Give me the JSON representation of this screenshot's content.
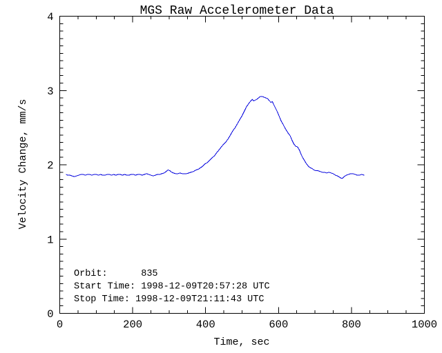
{
  "page": {
    "background_color": "#ffffff"
  },
  "chart_data": {
    "type": "line",
    "title": "MGS Raw Accelerometer Data",
    "xlabel": "Time, sec",
    "ylabel": "Velocity Change, mm/s",
    "xlim": [
      0,
      1000
    ],
    "ylim": [
      0,
      4
    ],
    "xticks": [
      "0",
      "200",
      "400",
      "600",
      "800",
      "1000"
    ],
    "yticks": [
      "0",
      "1",
      "2",
      "3",
      "4"
    ],
    "x_minor_interval": 50,
    "y_minor_interval": 0.1,
    "grid": false,
    "legend": false,
    "axis_color": "#000000",
    "annotations": [
      "Orbit:      835",
      "Start Time: 1998-12-09T20:57:28 UTC",
      "Stop Time: 1998-12-09T21:11:43 UTC"
    ],
    "series": [
      {
        "name": "velocity_change",
        "color": "#0000dd",
        "points": [
          [
            17,
            1.87
          ],
          [
            22,
            1.86
          ],
          [
            28,
            1.86
          ],
          [
            34,
            1.85
          ],
          [
            40,
            1.84
          ],
          [
            46,
            1.85
          ],
          [
            52,
            1.86
          ],
          [
            58,
            1.87
          ],
          [
            64,
            1.87
          ],
          [
            70,
            1.86
          ],
          [
            76,
            1.87
          ],
          [
            82,
            1.87
          ],
          [
            88,
            1.86
          ],
          [
            94,
            1.87
          ],
          [
            100,
            1.87
          ],
          [
            106,
            1.86
          ],
          [
            112,
            1.87
          ],
          [
            118,
            1.86
          ],
          [
            124,
            1.86
          ],
          [
            130,
            1.87
          ],
          [
            136,
            1.87
          ],
          [
            142,
            1.86
          ],
          [
            148,
            1.87
          ],
          [
            154,
            1.86
          ],
          [
            160,
            1.87
          ],
          [
            166,
            1.87
          ],
          [
            172,
            1.86
          ],
          [
            178,
            1.87
          ],
          [
            184,
            1.86
          ],
          [
            190,
            1.86
          ],
          [
            196,
            1.87
          ],
          [
            202,
            1.87
          ],
          [
            208,
            1.86
          ],
          [
            214,
            1.87
          ],
          [
            220,
            1.87
          ],
          [
            226,
            1.86
          ],
          [
            232,
            1.87
          ],
          [
            238,
            1.88
          ],
          [
            244,
            1.87
          ],
          [
            250,
            1.86
          ],
          [
            256,
            1.85
          ],
          [
            262,
            1.86
          ],
          [
            268,
            1.87
          ],
          [
            274,
            1.87
          ],
          [
            280,
            1.88
          ],
          [
            286,
            1.89
          ],
          [
            292,
            1.91
          ],
          [
            297,
            1.93
          ],
          [
            302,
            1.92
          ],
          [
            307,
            1.9
          ],
          [
            312,
            1.89
          ],
          [
            318,
            1.88
          ],
          [
            324,
            1.88
          ],
          [
            330,
            1.89
          ],
          [
            336,
            1.88
          ],
          [
            342,
            1.88
          ],
          [
            348,
            1.88
          ],
          [
            354,
            1.89
          ],
          [
            360,
            1.9
          ],
          [
            367,
            1.91
          ],
          [
            374,
            1.93
          ],
          [
            380,
            1.94
          ],
          [
            386,
            1.96
          ],
          [
            392,
            1.98
          ],
          [
            398,
            2.01
          ],
          [
            405,
            2.03
          ],
          [
            411,
            2.06
          ],
          [
            417,
            2.09
          ],
          [
            424,
            2.12
          ],
          [
            430,
            2.16
          ],
          [
            437,
            2.2
          ],
          [
            443,
            2.24
          ],
          [
            450,
            2.28
          ],
          [
            456,
            2.31
          ],
          [
            462,
            2.35
          ],
          [
            468,
            2.4
          ],
          [
            475,
            2.46
          ],
          [
            481,
            2.5
          ],
          [
            487,
            2.55
          ],
          [
            494,
            2.61
          ],
          [
            500,
            2.66
          ],
          [
            506,
            2.72
          ],
          [
            512,
            2.78
          ],
          [
            519,
            2.83
          ],
          [
            524,
            2.86
          ],
          [
            528,
            2.88
          ],
          [
            532,
            2.86
          ],
          [
            536,
            2.87
          ],
          [
            540,
            2.88
          ],
          [
            545,
            2.9
          ],
          [
            550,
            2.92
          ],
          [
            555,
            2.92
          ],
          [
            560,
            2.91
          ],
          [
            565,
            2.9
          ],
          [
            570,
            2.89
          ],
          [
            575,
            2.86
          ],
          [
            579,
            2.84
          ],
          [
            583,
            2.85
          ],
          [
            587,
            2.81
          ],
          [
            592,
            2.76
          ],
          [
            597,
            2.71
          ],
          [
            602,
            2.65
          ],
          [
            607,
            2.59
          ],
          [
            612,
            2.55
          ],
          [
            617,
            2.5
          ],
          [
            622,
            2.46
          ],
          [
            627,
            2.42
          ],
          [
            632,
            2.39
          ],
          [
            637,
            2.33
          ],
          [
            642,
            2.28
          ],
          [
            647,
            2.25
          ],
          [
            652,
            2.24
          ],
          [
            657,
            2.2
          ],
          [
            662,
            2.14
          ],
          [
            667,
            2.09
          ],
          [
            672,
            2.05
          ],
          [
            677,
            2.01
          ],
          [
            682,
            1.98
          ],
          [
            687,
            1.96
          ],
          [
            692,
            1.95
          ],
          [
            697,
            1.93
          ],
          [
            702,
            1.92
          ],
          [
            708,
            1.92
          ],
          [
            714,
            1.91
          ],
          [
            720,
            1.9
          ],
          [
            726,
            1.9
          ],
          [
            732,
            1.89
          ],
          [
            738,
            1.9
          ],
          [
            744,
            1.89
          ],
          [
            750,
            1.88
          ],
          [
            756,
            1.86
          ],
          [
            762,
            1.85
          ],
          [
            768,
            1.83
          ],
          [
            772,
            1.82
          ],
          [
            776,
            1.82
          ],
          [
            780,
            1.84
          ],
          [
            786,
            1.86
          ],
          [
            792,
            1.87
          ],
          [
            798,
            1.88
          ],
          [
            804,
            1.88
          ],
          [
            810,
            1.87
          ],
          [
            816,
            1.86
          ],
          [
            822,
            1.86
          ],
          [
            828,
            1.87
          ],
          [
            835,
            1.86
          ]
        ]
      }
    ]
  }
}
